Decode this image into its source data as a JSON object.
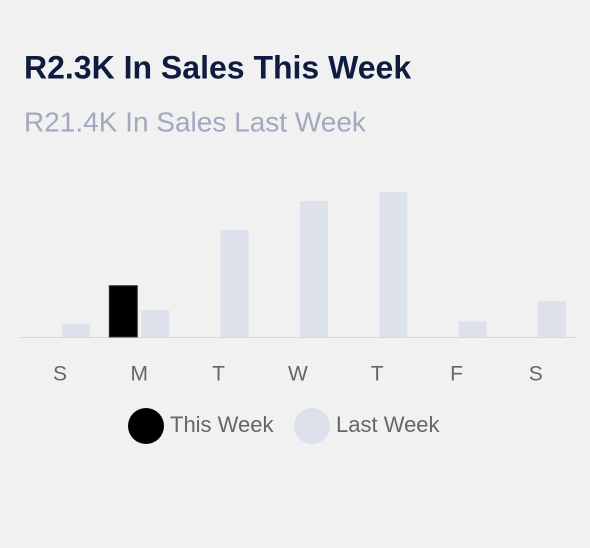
{
  "chart_data": {
    "type": "bar",
    "title": "R2.3K In Sales This Week",
    "subtitle": "R21.4K In Sales Last Week",
    "categories": [
      "S",
      "M",
      "T",
      "W",
      "T",
      "F",
      "S"
    ],
    "series": [
      {
        "name": "This Week",
        "color": "#000000",
        "values": [
          null,
          2.3,
          null,
          null,
          null,
          null,
          null
        ]
      },
      {
        "name": "Last Week",
        "color": "#dde1ec",
        "values": [
          0.6,
          1.2,
          4.8,
          6.1,
          6.5,
          0.7,
          1.6
        ]
      }
    ],
    "legend": "bottom"
  }
}
